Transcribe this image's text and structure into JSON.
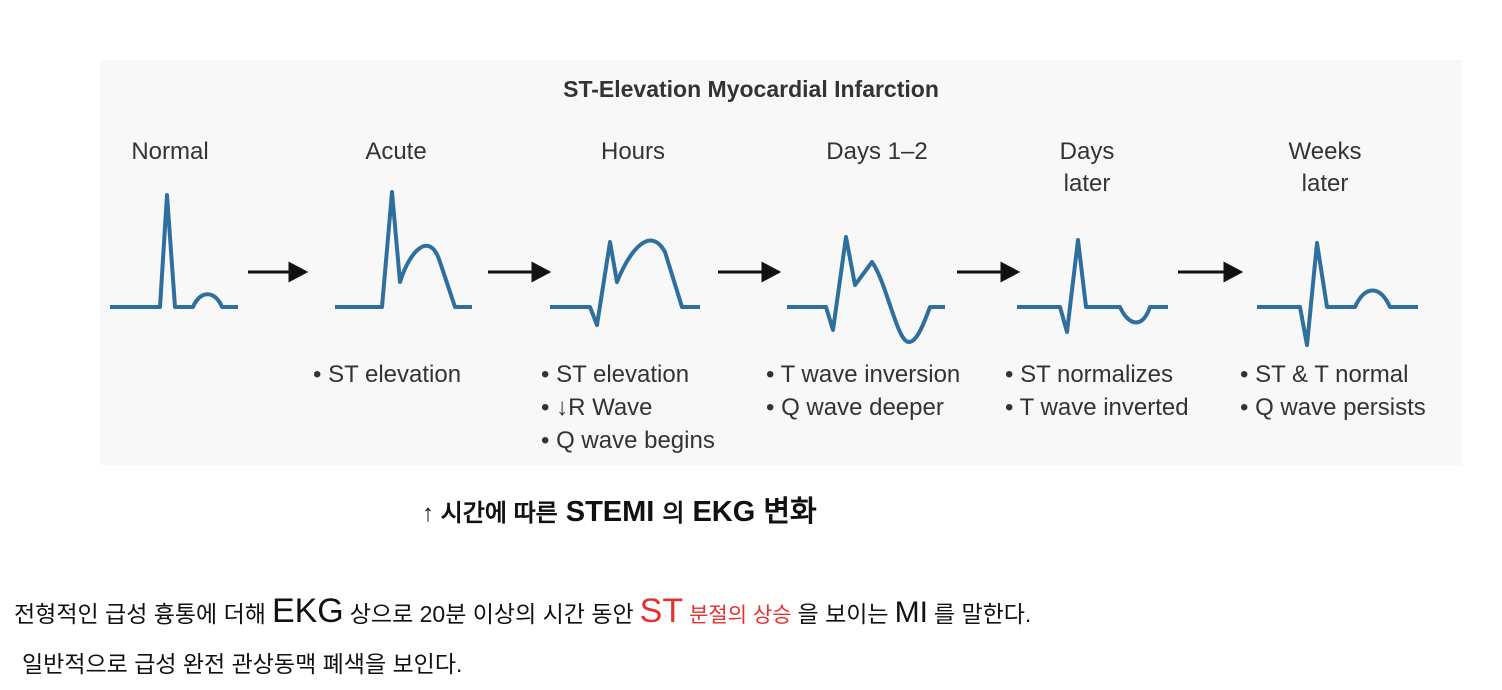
{
  "figure": {
    "title": "ST-Elevation Myocardial Infarction",
    "stages": [
      {
        "label": [
          "Normal"
        ],
        "bullets": []
      },
      {
        "label": [
          "Acute"
        ],
        "bullets": [
          "• ST elevation"
        ]
      },
      {
        "label": [
          "Hours"
        ],
        "bullets": [
          "• ST elevation",
          "• ↓R Wave",
          "• Q wave begins"
        ]
      },
      {
        "label": [
          "Days 1–2"
        ],
        "bullets": [
          "• T wave inversion",
          "• Q wave deeper"
        ]
      },
      {
        "label": [
          "Days",
          "later"
        ],
        "bullets": [
          "• ST normalizes",
          "• T wave inverted"
        ]
      },
      {
        "label": [
          "Weeks",
          "later"
        ],
        "bullets": [
          "• ST & T normal",
          "• Q wave persists"
        ]
      }
    ]
  },
  "caption": [
    "↑ 시간에 따른",
    "STEMI",
    "의",
    "EKG 변화"
  ],
  "paragraph": [
    [
      "전형적인 급성 흉통에 더해",
      "EKG",
      "상으로 20분 이상의 시간 동안",
      "ST",
      "분절의 상승",
      "을 보이는",
      "MI",
      "를 말한다."
    ],
    [
      "일반적으로 급성 완전 관상동맥 폐색을 보인다."
    ]
  ]
}
